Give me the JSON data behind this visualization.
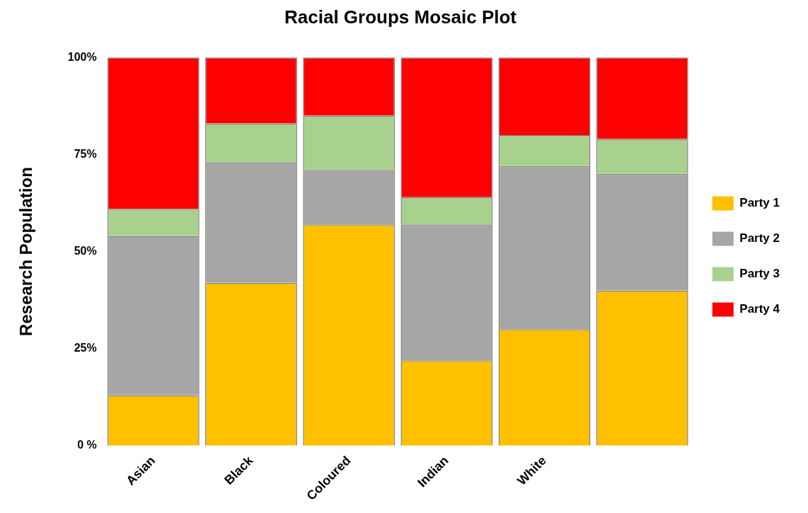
{
  "chart_data": {
    "type": "bar",
    "title": "Racial Groups Mosaic Plot",
    "ylabel": "Research Population",
    "categories": [
      "Asian",
      "Black",
      "Coloured",
      "Indian",
      "White",
      null
    ],
    "stacked": true,
    "legend": "right",
    "grid": false,
    "ylim": [
      0,
      100
    ],
    "yticks": [
      {
        "value": 0,
        "label": "0 %"
      },
      {
        "value": 25,
        "label": "25%"
      },
      {
        "value": 50,
        "label": "50%"
      },
      {
        "value": 75,
        "label": "75%"
      },
      {
        "value": 100,
        "label": "100%"
      }
    ],
    "series": [
      {
        "name": "Party 1",
        "color": "#ffc000",
        "values": [
          13,
          42,
          57,
          22,
          30,
          40
        ]
      },
      {
        "name": "Party 2",
        "color": "#a6a6a6",
        "values": [
          41,
          31,
          14,
          35,
          42,
          30
        ]
      },
      {
        "name": "Party 3",
        "color": "#a9d18e",
        "values": [
          7,
          10,
          14,
          7,
          8,
          9
        ]
      },
      {
        "name": "Party 4",
        "color": "#ff0000",
        "values": [
          39,
          17,
          15,
          36,
          20,
          21
        ]
      }
    ]
  }
}
